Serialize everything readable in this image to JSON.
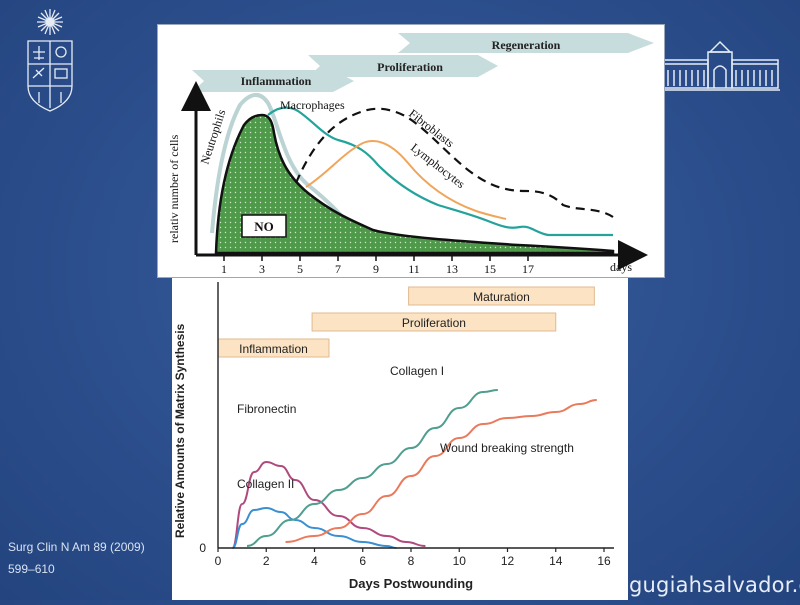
{
  "top_chart": {
    "phases": [
      "Inflammation",
      "Proliferation",
      "Regeneration"
    ],
    "y_axis_label": "relativ  number of cells",
    "x_unit": "days",
    "x_ticks": [
      "1",
      "3",
      "5",
      "7",
      "9",
      "11",
      "13",
      "15",
      "17"
    ],
    "curve_labels": {
      "neutrophils": "Neutrophils",
      "macrophages": "Macrophages",
      "fibroblasts": "Fibroblasts",
      "lymphocytes": "Lymphocytes",
      "no": "NO"
    },
    "colors": {
      "phase_banner": "#c7dcdc",
      "no_fill": "#4f9a4a",
      "neutrophils": "#bcd3d3",
      "macrophages": "#23a39b",
      "lymphocytes": "#f0a65a",
      "fibroblasts": "#111111"
    }
  },
  "chart_data": {
    "type": "line",
    "title": "",
    "xlabel": "Days Postwounding",
    "ylabel": "Relative Amounts of Matrix Synthesis",
    "xlim": [
      0,
      16
    ],
    "ylim": [
      0,
      1
    ],
    "x_ticks": [
      0,
      2,
      4,
      6,
      8,
      10,
      12,
      14,
      16
    ],
    "y_ticks": [
      0
    ],
    "phases": [
      {
        "label": "Inflammation",
        "start": 0,
        "end": 4.6
      },
      {
        "label": "Proliferation",
        "start": 3.9,
        "end": 14.0
      },
      {
        "label": "Maturation",
        "start": 7.9,
        "end": 15.6
      }
    ],
    "series": [
      {
        "name": "Fibronectin",
        "color": "#b04a7e",
        "x": [
          0.6,
          1.0,
          1.5,
          2.0,
          2.6,
          3.2,
          4.0,
          5.0,
          6.0,
          7.0,
          7.8,
          8.6
        ],
        "y": [
          0.0,
          0.22,
          0.38,
          0.43,
          0.41,
          0.34,
          0.24,
          0.16,
          0.1,
          0.06,
          0.03,
          0.01
        ]
      },
      {
        "name": "Collagen II",
        "color": "#3a8fd0",
        "x": [
          0.6,
          1.0,
          1.5,
          2.0,
          2.6,
          3.2,
          4.0,
          5.0,
          6.0,
          7.0,
          7.4
        ],
        "y": [
          0.0,
          0.12,
          0.19,
          0.2,
          0.18,
          0.14,
          0.1,
          0.06,
          0.03,
          0.01,
          0.0
        ]
      },
      {
        "name": "Collagen I",
        "color": "#4f9e90",
        "x": [
          1.2,
          2.0,
          3.0,
          4.0,
          5.0,
          6.0,
          7.0,
          8.0,
          9.0,
          10.0,
          11.0,
          11.6
        ],
        "y": [
          0.01,
          0.06,
          0.14,
          0.22,
          0.29,
          0.35,
          0.42,
          0.5,
          0.6,
          0.7,
          0.78,
          0.79
        ]
      },
      {
        "name": "Wound breaking strength",
        "color": "#ea7a5c",
        "x": [
          2.8,
          4.0,
          5.0,
          6.0,
          7.0,
          8.0,
          9.0,
          10.0,
          11.0,
          12.0,
          13.0,
          14.0,
          15.0,
          15.7
        ],
        "y": [
          0.03,
          0.06,
          0.1,
          0.17,
          0.26,
          0.36,
          0.46,
          0.55,
          0.62,
          0.65,
          0.66,
          0.68,
          0.72,
          0.74
        ]
      }
    ]
  },
  "citation": {
    "line1": "Surg Clin N Am 89 (2009)",
    "line2": "599–610"
  },
  "website": "gugiahsalvador.cl"
}
